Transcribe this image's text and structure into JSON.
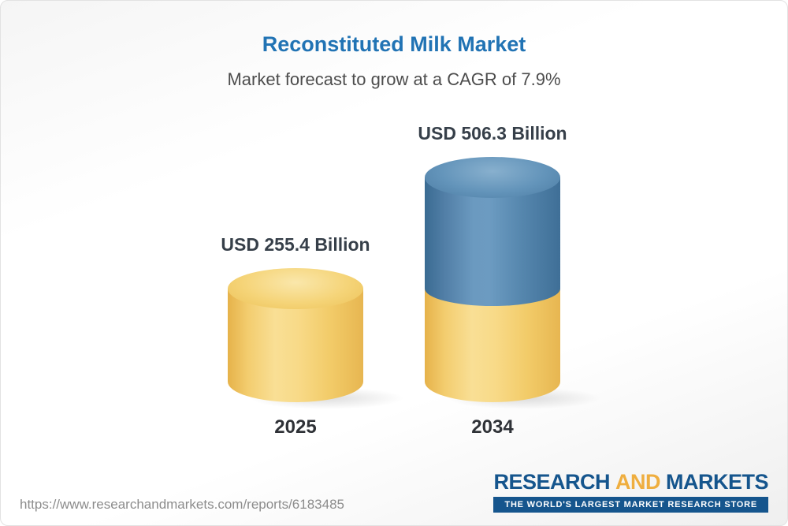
{
  "header": {
    "title": "Reconstituted Milk Market",
    "subtitle": "Market forecast to grow at a CAGR of 7.9%"
  },
  "chart_data": {
    "type": "bar",
    "subtype": "3d-cylinder",
    "categories": [
      "2025",
      "2034"
    ],
    "values": [
      255.4,
      506.3
    ],
    "value_labels": [
      "USD 255.4 Billion",
      "USD 506.3 Billion"
    ],
    "unit": "USD Billion",
    "title": "Reconstituted Milk Market",
    "subtitle": "Market forecast to grow at a CAGR of 7.9%",
    "cagr_percent": 7.9,
    "ylim": [
      0,
      506.3
    ],
    "grid": false,
    "legend": false,
    "colors": {
      "base_segment": "#f5cf6e",
      "growth_segment": "#4d82ab"
    }
  },
  "footer": {
    "url": "https://www.researchandmarkets.com/reports/6183485",
    "logo": {
      "word_research": "RESEARCH",
      "word_and": "AND",
      "word_markets": "MARKETS",
      "tagline": "THE WORLD'S LARGEST MARKET RESEARCH STORE"
    }
  },
  "colors": {
    "title_blue": "#2173b4",
    "logo_blue": "#15558d",
    "logo_yellow": "#efae3f"
  }
}
